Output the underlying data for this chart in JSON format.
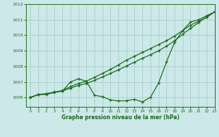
{
  "title": "Graphe pression niveau de la mer (hPa)",
  "background_color": "#cce8e8",
  "line_color": "#1a6b1a",
  "grid_color": "#aacccc",
  "xlim": [
    -0.5,
    23
  ],
  "ylim": [
    1005.4,
    1012.0
  ],
  "yticks": [
    1006,
    1007,
    1008,
    1009,
    1010,
    1011,
    1012
  ],
  "xticks": [
    0,
    1,
    2,
    3,
    4,
    5,
    6,
    7,
    8,
    9,
    10,
    11,
    12,
    13,
    14,
    15,
    16,
    17,
    18,
    19,
    20,
    21,
    22,
    23
  ],
  "series1": [
    1006.0,
    1006.2,
    1006.2,
    1006.35,
    1006.4,
    1007.0,
    1007.2,
    1007.05,
    1006.15,
    1006.05,
    1005.85,
    1005.78,
    1005.8,
    1005.88,
    1005.72,
    1006.02,
    1006.92,
    1008.3,
    1009.55,
    1010.3,
    1010.85,
    1011.0,
    1011.25,
    1011.5
  ],
  "series2": [
    1006.0,
    1006.2,
    1006.25,
    1006.35,
    1006.45,
    1006.7,
    1006.9,
    1007.05,
    1007.3,
    1007.55,
    1007.8,
    1008.1,
    1008.4,
    1008.65,
    1008.9,
    1009.15,
    1009.4,
    1009.65,
    1009.95,
    1010.3,
    1010.65,
    1010.9,
    1011.15,
    1011.5
  ],
  "series3": [
    1006.0,
    1006.18,
    1006.22,
    1006.32,
    1006.42,
    1006.6,
    1006.78,
    1006.9,
    1007.1,
    1007.32,
    1007.55,
    1007.78,
    1008.02,
    1008.28,
    1008.52,
    1008.75,
    1009.0,
    1009.3,
    1009.65,
    1010.05,
    1010.45,
    1010.82,
    1011.18,
    1011.5
  ]
}
